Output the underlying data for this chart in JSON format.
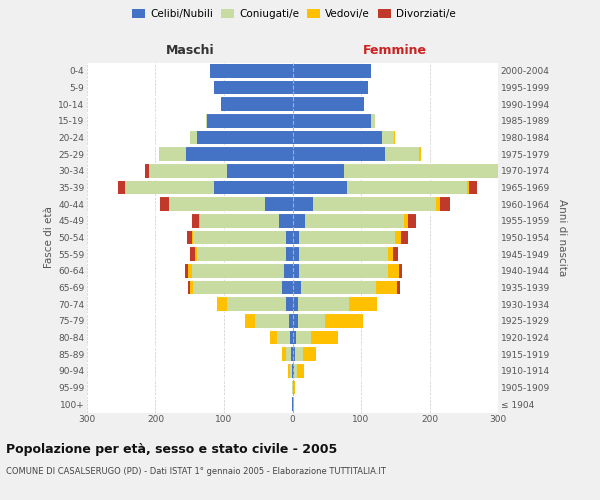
{
  "age_groups": [
    "100+",
    "95-99",
    "90-94",
    "85-89",
    "80-84",
    "75-79",
    "70-74",
    "65-69",
    "60-64",
    "55-59",
    "50-54",
    "45-49",
    "40-44",
    "35-39",
    "30-34",
    "25-29",
    "20-24",
    "15-19",
    "10-14",
    "5-9",
    "0-4"
  ],
  "birth_years": [
    "≤ 1904",
    "1905-1909",
    "1910-1914",
    "1915-1919",
    "1920-1924",
    "1925-1929",
    "1930-1934",
    "1935-1939",
    "1940-1944",
    "1945-1949",
    "1950-1954",
    "1955-1959",
    "1960-1964",
    "1965-1969",
    "1970-1974",
    "1975-1979",
    "1980-1984",
    "1985-1989",
    "1990-1994",
    "1995-1999",
    "2000-2004"
  ],
  "male_celibi": [
    1,
    0,
    1,
    2,
    3,
    5,
    10,
    15,
    12,
    10,
    10,
    20,
    40,
    115,
    95,
    155,
    140,
    125,
    105,
    115,
    120
  ],
  "male_coniugati": [
    0,
    1,
    3,
    8,
    20,
    50,
    85,
    130,
    135,
    130,
    135,
    115,
    140,
    130,
    115,
    40,
    10,
    2,
    0,
    0,
    0
  ],
  "male_vedovi": [
    0,
    0,
    2,
    5,
    10,
    15,
    15,
    5,
    5,
    3,
    2,
    2,
    1,
    0,
    0,
    0,
    0,
    0,
    0,
    0,
    0
  ],
  "male_divorziati": [
    0,
    0,
    0,
    0,
    0,
    0,
    0,
    2,
    5,
    7,
    7,
    10,
    12,
    10,
    5,
    0,
    0,
    0,
    0,
    0,
    0
  ],
  "female_celibi": [
    1,
    1,
    2,
    3,
    5,
    8,
    8,
    12,
    10,
    10,
    10,
    18,
    30,
    80,
    75,
    135,
    130,
    115,
    105,
    110,
    115
  ],
  "female_coniugati": [
    0,
    0,
    5,
    12,
    22,
    40,
    75,
    110,
    130,
    130,
    140,
    145,
    180,
    175,
    230,
    50,
    18,
    5,
    0,
    0,
    0
  ],
  "female_vedovi": [
    1,
    2,
    10,
    20,
    40,
    55,
    40,
    30,
    15,
    7,
    8,
    5,
    5,
    2,
    2,
    2,
    1,
    0,
    0,
    0,
    0
  ],
  "female_divorziati": [
    0,
    0,
    0,
    0,
    0,
    0,
    0,
    5,
    5,
    7,
    10,
    12,
    15,
    12,
    5,
    0,
    0,
    0,
    0,
    0,
    0
  ],
  "colors": {
    "celibi": "#4472c4",
    "coniugati": "#c8dba0",
    "vedovi": "#ffc000",
    "divorziati": "#c0392b"
  },
  "xlim": 300,
  "title": "Popolazione per età, sesso e stato civile - 2005",
  "subtitle": "COMUNE DI CASALSERUGO (PD) - Dati ISTAT 1° gennaio 2005 - Elaborazione TUTTITALIA.IT",
  "ylabel_left": "Fasce di età",
  "ylabel_right": "Anni di nascita",
  "xlabel_left": "Maschi",
  "xlabel_right": "Femmine",
  "bg_color": "#f0f0f0",
  "plot_bg": "#ffffff"
}
